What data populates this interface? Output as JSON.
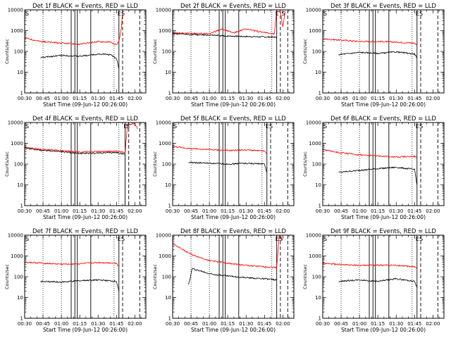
{
  "figure": {
    "x_ticks": [
      "00:30",
      "00:45",
      "01:00",
      "01:15",
      "01:30",
      "01:45",
      "02:00"
    ],
    "x_label": "Start Time (09-Jun-12 00:26:00)",
    "y_label": "Counts/sec",
    "y_ticks": [
      "1",
      "10",
      "100",
      "1000",
      "10000"
    ],
    "colors": {
      "events": "#000000",
      "lld": "#ff0000",
      "axes": "#000000"
    }
  },
  "chart_data": [
    {
      "type": "line",
      "title": "Det 1f BLACK = Events, RED = LLD",
      "y_log": true,
      "ylim": [
        1,
        10000
      ],
      "xlim": [
        "00:30",
        "02:09"
      ],
      "markers": [
        {
          "t": "00:30",
          "label": "S"
        },
        {
          "t": "01:47",
          "label": "E"
        },
        {
          "t": "01:50",
          "label": "S"
        }
      ],
      "solid_lines": [
        "01:08",
        "01:11",
        "01:13",
        "01:24",
        "01:47"
      ],
      "dotted_lines": [
        "00:45",
        "01:00",
        "01:43"
      ],
      "dashed_lines": [
        "01:50",
        "02:04"
      ],
      "series": [
        {
          "name": "Events",
          "color": "#000000",
          "segments": [
            {
              "x": [
                "00:43",
                "01:00",
                "01:15",
                "01:30",
                "01:40",
                "01:45",
                "01:47"
              ],
              "y": [
                50,
                65,
                58,
                75,
                70,
                45,
                15
              ]
            }
          ]
        },
        {
          "name": "LLD",
          "color": "#ff0000",
          "segments": [
            {
              "x": [
                "00:30",
                "00:43",
                "01:00",
                "01:15",
                "01:30",
                "01:40",
                "01:45",
                "01:47",
                "01:49",
                "01:50"
              ],
              "y": [
                450,
                300,
                250,
                220,
                300,
                280,
                200,
                300,
                1300,
                9000
              ]
            }
          ]
        }
      ]
    },
    {
      "type": "line",
      "title": "Det 2f BLACK = Events, RED = LLD",
      "y_log": true,
      "ylim": [
        1,
        10000
      ],
      "xlim": [
        "00:30",
        "02:09"
      ],
      "markers": [
        {
          "t": "01:55",
          "label": "E"
        },
        {
          "t": "02:00",
          "label": "S"
        }
      ],
      "solid_lines": [
        "01:08",
        "01:11",
        "01:13",
        "01:24",
        "01:55"
      ],
      "dotted_lines": [
        "00:45",
        "01:00",
        "01:51"
      ],
      "dashed_lines": [
        "01:58",
        "02:04"
      ],
      "series": [
        {
          "name": "Events",
          "color": "#000000",
          "segments": [
            {
              "x": [
                "00:30",
                "00:45",
                "01:00",
                "01:15",
                "01:30",
                "01:45",
                "01:55"
              ],
              "y": [
                700,
                650,
                600,
                550,
                520,
                500,
                480
              ]
            }
          ]
        },
        {
          "name": "LLD",
          "color": "#ff0000",
          "segments": [
            {
              "x": [
                "00:30",
                "00:45",
                "01:00",
                "01:10",
                "01:20",
                "01:30",
                "01:45",
                "01:53",
                "01:55",
                "01:58",
                "02:00",
                "02:02"
              ],
              "y": [
                800,
                750,
                700,
                1200,
                800,
                1200,
                800,
                700,
                9000,
                8000,
                1500,
                9000
              ]
            }
          ]
        }
      ]
    },
    {
      "type": "line",
      "title": "Det 3f BLACK = Events, RED = LLD",
      "y_log": true,
      "ylim": [
        1,
        10000
      ],
      "xlim": [
        "00:30",
        "02:09"
      ],
      "markers": [
        {
          "t": "00:30",
          "label": "S"
        },
        {
          "t": "01:47",
          "label": "E"
        },
        {
          "t": "01:50",
          "label": "S"
        }
      ],
      "solid_lines": [
        "01:08",
        "01:11",
        "01:13",
        "01:24",
        "01:47"
      ],
      "dotted_lines": [
        "00:45",
        "01:00",
        "01:43"
      ],
      "dashed_lines": [
        "01:50",
        "02:04"
      ],
      "series": [
        {
          "name": "Events",
          "color": "#000000",
          "segments": [
            {
              "x": [
                "00:43",
                "01:00",
                "01:15",
                "01:30",
                "01:45",
                "01:47"
              ],
              "y": [
                70,
                90,
                80,
                95,
                75,
                50
              ]
            }
          ]
        },
        {
          "name": "LLD",
          "color": "#ff0000",
          "segments": [
            {
              "x": [
                "00:30",
                "00:45",
                "01:00",
                "01:15",
                "01:30",
                "01:45",
                "01:47"
              ],
              "y": [
                400,
                350,
                300,
                300,
                280,
                250,
                200
              ]
            }
          ]
        }
      ]
    },
    {
      "type": "line",
      "title": "Det 4f BLACK = Events, RED = LLD",
      "y_log": true,
      "ylim": [
        1,
        10000
      ],
      "xlim": [
        "00:30",
        "02:09"
      ],
      "markers": [
        {
          "t": "00:30",
          "label": "S"
        },
        {
          "t": "01:52",
          "label": "E"
        },
        {
          "t": "01:54",
          "label": "S"
        }
      ],
      "solid_lines": [
        "01:08",
        "01:11",
        "01:13",
        "01:24",
        "01:52"
      ],
      "dotted_lines": [
        "00:45",
        "01:00",
        "01:47"
      ],
      "dashed_lines": [
        "01:55",
        "02:04"
      ],
      "series": [
        {
          "name": "Events",
          "color": "#000000",
          "segments": [
            {
              "x": [
                "00:30",
                "00:45",
                "01:00",
                "01:15",
                "01:30",
                "01:45",
                "01:52"
              ],
              "y": [
                600,
                450,
                400,
                320,
                340,
                360,
                300
              ]
            }
          ]
        },
        {
          "name": "LLD",
          "color": "#ff0000",
          "segments": [
            {
              "x": [
                "00:30",
                "00:45",
                "01:00",
                "01:15",
                "01:30",
                "01:45",
                "01:52",
                "01:54",
                "02:00",
                "02:02"
              ],
              "y": [
                650,
                500,
                450,
                380,
                400,
                420,
                350,
                8000,
                9000,
                5000
              ]
            }
          ]
        }
      ]
    },
    {
      "type": "line",
      "title": "Det 5f BLACK = Events, RED = LLD",
      "y_log": true,
      "ylim": [
        1,
        10000
      ],
      "xlim": [
        "00:30",
        "02:09"
      ],
      "markers": [
        {
          "t": "00:30",
          "label": "S"
        },
        {
          "t": "01:47",
          "label": "E"
        },
        {
          "t": "01:50",
          "label": "S"
        }
      ],
      "solid_lines": [
        "01:08",
        "01:11",
        "01:13",
        "01:24",
        "01:47"
      ],
      "dotted_lines": [
        "00:45",
        "01:00",
        "01:43"
      ],
      "dashed_lines": [
        "01:50",
        "02:04"
      ],
      "series": [
        {
          "name": "Events",
          "color": "#000000",
          "segments": [
            {
              "x": [
                "00:43",
                "01:00",
                "01:15",
                "01:30",
                "01:45",
                "01:47"
              ],
              "y": [
                120,
                110,
                100,
                110,
                100,
                40
              ]
            }
          ]
        },
        {
          "name": "LLD",
          "color": "#ff0000",
          "segments": [
            {
              "x": [
                "00:30",
                "00:45",
                "01:00",
                "01:15",
                "01:30",
                "01:45",
                "01:47"
              ],
              "y": [
                700,
                550,
                500,
                450,
                480,
                420,
                300
              ]
            }
          ]
        }
      ]
    },
    {
      "type": "line",
      "title": "Det 6f BLACK = Events, RED = LLD",
      "y_log": true,
      "ylim": [
        1,
        10000
      ],
      "xlim": [
        "00:30",
        "02:09"
      ],
      "markers": [
        {
          "t": "00:30",
          "label": "S"
        },
        {
          "t": "01:47",
          "label": "E"
        },
        {
          "t": "01:50",
          "label": "S"
        }
      ],
      "solid_lines": [
        "01:08",
        "01:11",
        "01:13",
        "01:24",
        "01:47"
      ],
      "dotted_lines": [
        "00:45",
        "01:00",
        "01:43"
      ],
      "dashed_lines": [
        "01:50",
        "02:04"
      ],
      "series": [
        {
          "name": "Events",
          "color": "#000000",
          "segments": [
            {
              "x": [
                "00:43",
                "01:00",
                "01:15",
                "01:30",
                "01:45",
                "01:47"
              ],
              "y": [
                40,
                50,
                60,
                70,
                55,
                10
              ]
            }
          ]
        },
        {
          "name": "LLD",
          "color": "#ff0000",
          "segments": [
            {
              "x": [
                "00:30",
                "00:45",
                "01:00",
                "01:15",
                "01:30",
                "01:45",
                "01:47"
              ],
              "y": [
                500,
                350,
                280,
                250,
                220,
                240,
                200
              ]
            }
          ]
        }
      ]
    },
    {
      "type": "line",
      "title": "Det 7f BLACK = Events, RED = LLD",
      "y_log": true,
      "ylim": [
        1,
        10000
      ],
      "xlim": [
        "00:30",
        "02:09"
      ],
      "markers": [
        {
          "t": "00:30",
          "label": "S"
        },
        {
          "t": "01:47",
          "label": "E"
        },
        {
          "t": "01:50",
          "label": "S"
        }
      ],
      "solid_lines": [
        "01:08",
        "01:11",
        "01:13",
        "01:24",
        "01:47"
      ],
      "dotted_lines": [
        "00:45",
        "01:00",
        "01:43"
      ],
      "dashed_lines": [
        "01:50",
        "02:04"
      ],
      "series": [
        {
          "name": "Events",
          "color": "#000000",
          "segments": [
            {
              "x": [
                "00:43",
                "01:00",
                "01:15",
                "01:30",
                "01:45",
                "01:47"
              ],
              "y": [
                60,
                55,
                65,
                70,
                60,
                20
              ]
            }
          ]
        },
        {
          "name": "LLD",
          "color": "#ff0000",
          "segments": [
            {
              "x": [
                "00:30",
                "00:45",
                "01:00",
                "01:15",
                "01:30",
                "01:45",
                "01:47"
              ],
              "y": [
                500,
                450,
                400,
                420,
                480,
                450,
                300
              ]
            }
          ]
        }
      ]
    },
    {
      "type": "line",
      "title": "Det 8f BLACK = Events, RED = LLD",
      "y_log": true,
      "ylim": [
        1,
        10000
      ],
      "xlim": [
        "00:30",
        "02:09"
      ],
      "markers": [
        {
          "t": "01:55",
          "label": "E"
        },
        {
          "t": "01:58",
          "label": "S"
        }
      ],
      "solid_lines": [
        "01:08",
        "01:11",
        "01:13",
        "01:24",
        "01:55"
      ],
      "dotted_lines": [
        "00:45",
        "01:00",
        "01:51"
      ],
      "dashed_lines": [
        "01:58",
        "02:04"
      ],
      "series": [
        {
          "name": "Events",
          "color": "#000000",
          "segments": [
            {
              "x": [
                "00:43",
                "00:46",
                "01:00",
                "01:15",
                "01:30",
                "01:45",
                "01:55"
              ],
              "y": [
                40,
                250,
                140,
                110,
                90,
                80,
                70
              ]
            }
          ]
        },
        {
          "name": "LLD",
          "color": "#ff0000",
          "segments": [
            {
              "x": [
                "00:30",
                "00:45",
                "01:00",
                "01:15",
                "01:30",
                "01:45",
                "01:55",
                "01:57",
                "02:00"
              ],
              "y": [
                4000,
                1200,
                600,
                450,
                350,
                300,
                280,
                9000,
                6000
              ]
            }
          ]
        }
      ]
    },
    {
      "type": "line",
      "title": "Det 9f BLACK = Events, RED = LLD",
      "y_log": true,
      "ylim": [
        1,
        10000
      ],
      "xlim": [
        "00:30",
        "02:09"
      ],
      "markers": [
        {
          "t": "00:30",
          "label": "S"
        },
        {
          "t": "01:47",
          "label": "E"
        },
        {
          "t": "01:50",
          "label": "S"
        }
      ],
      "solid_lines": [
        "01:08",
        "01:11",
        "01:13",
        "01:24",
        "01:47"
      ],
      "dotted_lines": [
        "00:45",
        "01:00",
        "01:43"
      ],
      "dashed_lines": [
        "01:50",
        "02:04"
      ],
      "series": [
        {
          "name": "Events",
          "color": "#000000",
          "segments": [
            {
              "x": [
                "00:43",
                "01:00",
                "01:15",
                "01:30",
                "01:45",
                "01:47"
              ],
              "y": [
                60,
                70,
                60,
                80,
                60,
                30
              ]
            }
          ]
        },
        {
          "name": "LLD",
          "color": "#ff0000",
          "segments": [
            {
              "x": [
                "00:30",
                "00:45",
                "01:00",
                "01:15",
                "01:30",
                "01:45",
                "01:47"
              ],
              "y": [
                450,
                380,
                350,
                360,
                350,
                300,
                250
              ]
            }
          ]
        }
      ]
    }
  ]
}
